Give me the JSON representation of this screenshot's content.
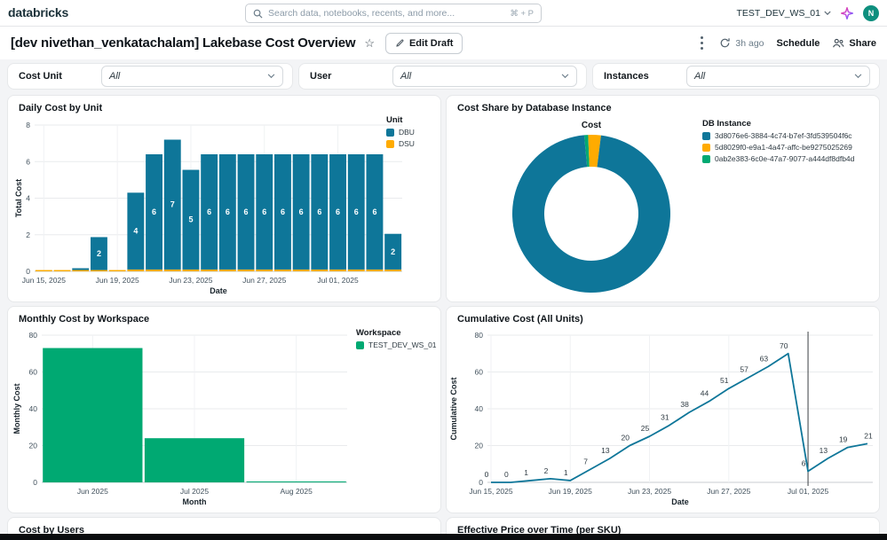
{
  "nav": {
    "logo": "databricks",
    "search_placeholder": "Search data, notebooks, recents, and more...",
    "search_shortcut": "⌘ + P",
    "workspace": "TEST_DEV_WS_01",
    "avatar_initial": "N"
  },
  "toolbar": {
    "title": "[dev nivethan_venkatachalam] Lakebase Cost Overview",
    "edit_label": "Edit Draft",
    "refreshed": "3h ago",
    "schedule_label": "Schedule",
    "share_label": "Share"
  },
  "filters": [
    {
      "label": "Cost Unit",
      "value": "All"
    },
    {
      "label": "User",
      "value": "All"
    },
    {
      "label": "Instances",
      "value": "All"
    }
  ],
  "colors": {
    "teal": "#0E7699",
    "amber": "#FFAB00",
    "green": "#00A972",
    "page_bg": "#F3F4F6",
    "grid": "#E9EBED",
    "vline": "#3C4043"
  },
  "chart_data": [
    {
      "id": "daily",
      "type": "bar",
      "stacked": true,
      "title": "Daily Cost by Unit",
      "xlabel": "Date",
      "ylabel": "Total Cost",
      "ylim": [
        0,
        8
      ],
      "yticks": [
        0,
        2,
        4,
        6,
        8
      ],
      "categories": [
        "Jun 15, 2025",
        "Jun 16, 2025",
        "Jun 17, 2025",
        "Jun 18, 2025",
        "Jun 19, 2025",
        "Jun 20, 2025",
        "Jun 21, 2025",
        "Jun 22, 2025",
        "Jun 23, 2025",
        "Jun 24, 2025",
        "Jun 25, 2025",
        "Jun 26, 2025",
        "Jun 27, 2025",
        "Jun 28, 2025",
        "Jun 29, 2025",
        "Jun 30, 2025",
        "Jul 01, 2025",
        "Jul 02, 2025",
        "Jul 03, 2025",
        "Jul 04, 2025"
      ],
      "xtick_indices": [
        0,
        4,
        8,
        12,
        16
      ],
      "legend_title": "Unit",
      "series": [
        {
          "name": "DSU",
          "color": "#FFAB00",
          "values": [
            0.07,
            0.07,
            0.07,
            0.07,
            0.07,
            0.1,
            0.1,
            0.1,
            0.1,
            0.1,
            0.1,
            0.1,
            0.1,
            0.1,
            0.1,
            0.1,
            0.1,
            0.1,
            0.1,
            0.1
          ]
        },
        {
          "name": "DBU",
          "color": "#0E7699",
          "values": [
            0,
            0,
            0.1,
            1.8,
            0,
            4.2,
            6.3,
            7.1,
            5.45,
            6.3,
            6.3,
            6.3,
            6.3,
            6.3,
            6.3,
            6.3,
            6.3,
            6.3,
            6.3,
            1.95
          ]
        }
      ],
      "bar_labels": [
        "",
        "",
        "",
        "2",
        "",
        "4",
        "6",
        "7",
        "5",
        "6",
        "6",
        "6",
        "6",
        "6",
        "6",
        "6",
        "6",
        "6",
        "6",
        "2"
      ]
    },
    {
      "id": "cost-share",
      "type": "pie",
      "donut": true,
      "title": "Cost Share by Database Instance",
      "center_label": "Cost",
      "legend_title": "DB Instance",
      "slices": [
        {
          "name": "3d8076e6-3884-4c74-b7ef-3fd539504f6c",
          "color": "#0E7699",
          "value": 96.6
        },
        {
          "name": "5d8029f0-e9a1-4a47-affc-be9275025269",
          "color": "#FFAB00",
          "value": 2.6
        },
        {
          "name": "0ab2e383-6c0e-47a7-9077-a444df8dfb4d",
          "color": "#00A972",
          "value": 0.8
        }
      ]
    },
    {
      "id": "monthly",
      "type": "bar",
      "stacked": false,
      "title": "Monthly Cost by Workspace",
      "xlabel": "Month",
      "ylabel": "Monthly Cost",
      "ylim": [
        0,
        80
      ],
      "yticks": [
        0,
        20,
        40,
        60,
        80
      ],
      "categories": [
        "Jun 2025",
        "Jul 2025",
        "Aug 2025"
      ],
      "xtick_indices": [
        0,
        1,
        2
      ],
      "legend_title": "Workspace",
      "series": [
        {
          "name": "TEST_DEV_WS_01",
          "color": "#00A972",
          "values": [
            73,
            24,
            0.5
          ]
        }
      ],
      "bar_labels": [
        "",
        "",
        ""
      ]
    },
    {
      "id": "cumulative",
      "type": "line",
      "title": "Cumulative Cost (All Units)",
      "xlabel": "Date",
      "ylabel": "Cumulative Cost",
      "ylim": [
        0,
        80
      ],
      "yticks": [
        0,
        20,
        40,
        60,
        80
      ],
      "categories": [
        "Jun 15, 2025",
        "Jun 16, 2025",
        "Jun 17, 2025",
        "Jun 18, 2025",
        "Jun 19, 2025",
        "Jun 20, 2025",
        "Jun 21, 2025",
        "Jun 22, 2025",
        "Jun 23, 2025",
        "Jun 24, 2025",
        "Jun 25, 2025",
        "Jun 26, 2025",
        "Jun 27, 2025",
        "Jun 28, 2025",
        "Jun 29, 2025",
        "Jun 30, 2025",
        "Jul 01, 2025",
        "Jul 02, 2025",
        "Jul 03, 2025",
        "Jul 04, 2025"
      ],
      "xtick_indices": [
        0,
        4,
        8,
        12,
        16
      ],
      "color": "#0E7699",
      "values": [
        0,
        0,
        1,
        2,
        1,
        7,
        13,
        20,
        25,
        31,
        38,
        44,
        51,
        57,
        63,
        70,
        6,
        13,
        19,
        21
      ],
      "point_labels": [
        "0",
        "0",
        "1",
        "2",
        "1",
        "7",
        "13",
        "20",
        "25",
        "31",
        "38",
        "44",
        "51",
        "57",
        "63",
        "70",
        "6",
        "13",
        "19",
        "21"
      ],
      "vline_index": 16
    }
  ],
  "partial_cards": [
    {
      "title": "Cost by Users"
    },
    {
      "title": "Effective Price over Time (per SKU)"
    }
  ]
}
